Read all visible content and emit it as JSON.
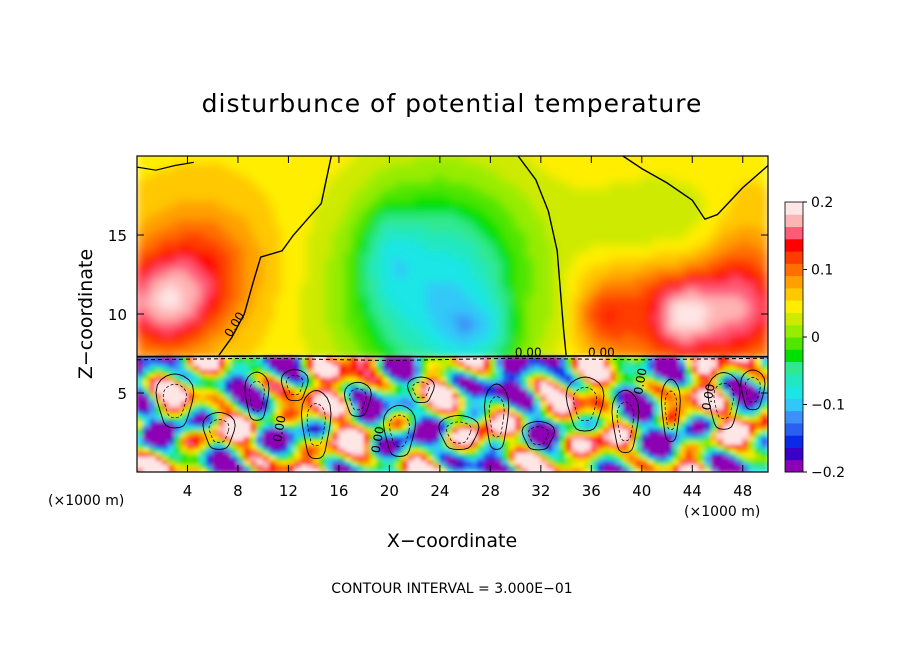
{
  "chart_data": {
    "type": "heatmap",
    "title": "disturbunce of potential temperature",
    "xlabel": "X−coordinate",
    "ylabel": "Z−coordinate",
    "x_unit_left": "(×1000 m)",
    "x_unit_right": "(×1000 m)",
    "footer": "CONTOUR INTERVAL = 3.000E−01",
    "xlim": [
      0,
      50
    ],
    "ylim": [
      0,
      20
    ],
    "x_ticks": [
      4,
      8,
      12,
      16,
      20,
      24,
      28,
      32,
      36,
      40,
      44,
      48
    ],
    "x_tick_labels": [
      "4",
      "8",
      "12",
      "16",
      "20",
      "24",
      "28",
      "32",
      "36",
      "40",
      "44",
      "48"
    ],
    "y_ticks": [
      5,
      10,
      15
    ],
    "y_tick_labels": [
      "5",
      "10",
      "15"
    ],
    "colorbar": {
      "range": [
        -0.2,
        0.2
      ],
      "ticks": [
        0.2,
        0.1,
        0,
        -0.1,
        -0.2
      ],
      "tick_labels": [
        "0.2",
        "0.1",
        "0",
        "−0.1",
        "−0.2"
      ],
      "colors": [
        "#8e00b4",
        "#3a00c8",
        "#0a2ae6",
        "#2a60f0",
        "#3c90f8",
        "#30c8f8",
        "#1ae6e6",
        "#20e8c0",
        "#30e890",
        "#00e000",
        "#50e600",
        "#98ec00",
        "#cdea00",
        "#ffee00",
        "#ffc800",
        "#ffa000",
        "#ff7000",
        "#ff3c00",
        "#ff0000",
        "#ff5a78",
        "#ffb4b4",
        "#ffe6e6"
      ]
    },
    "contour_labels": [
      {
        "x": 8.0,
        "y": 9.2,
        "text": "0.00"
      },
      {
        "x": 31.0,
        "y": 7.3,
        "text": "0.00"
      },
      {
        "x": 36.8,
        "y": 7.3,
        "text": "0.00"
      },
      {
        "x": 40.2,
        "y": 5.7,
        "text": "0.00"
      },
      {
        "x": 45.6,
        "y": 4.7,
        "text": "0.00"
      },
      {
        "x": 11.6,
        "y": 2.7,
        "text": "0.00"
      },
      {
        "x": 19.4,
        "y": 2.0,
        "text": "0.00"
      }
    ]
  }
}
